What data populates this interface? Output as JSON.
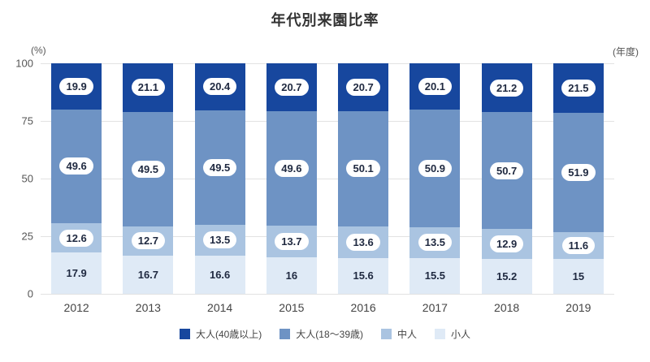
{
  "title": "年代別来園比率",
  "y_axis_unit": "(%)",
  "x_axis_unit": "(年度)",
  "y_ticks": [
    "100",
    "75",
    "50",
    "25",
    "0"
  ],
  "chart_data": {
    "type": "bar",
    "stacked": true,
    "title": "年代別来園比率",
    "xlabel": "(年度)",
    "ylabel": "(%)",
    "ylim": [
      0,
      100
    ],
    "grid": true,
    "legend_position": "bottom",
    "categories": [
      "2012",
      "2013",
      "2014",
      "2015",
      "2016",
      "2017",
      "2018",
      "2019"
    ],
    "series": [
      {
        "key": "adult-40plus",
        "name": "大人(40歳以上)",
        "color": "#17479e",
        "pill": true,
        "values": [
          19.9,
          21.1,
          20.4,
          20.7,
          20.7,
          20.1,
          21.2,
          21.5
        ],
        "labels": [
          "19.9",
          "21.1",
          "20.4",
          "20.7",
          "20.7",
          "20.1",
          "21.2",
          "21.5"
        ]
      },
      {
        "key": "adult-18-39",
        "name": "大人(18〜39歳)",
        "color": "#6e93c4",
        "pill": true,
        "values": [
          49.6,
          49.5,
          49.5,
          49.6,
          50.1,
          50.9,
          50.7,
          51.9
        ],
        "labels": [
          "49.6",
          "49.5",
          "49.5",
          "49.6",
          "50.1",
          "50.9",
          "50.7",
          "51.9"
        ]
      },
      {
        "key": "middle",
        "name": "中人",
        "color": "#aac4e1",
        "pill": true,
        "values": [
          12.6,
          12.7,
          13.5,
          13.7,
          13.6,
          13.5,
          12.9,
          11.6
        ],
        "labels": [
          "12.6",
          "12.7",
          "13.5",
          "13.7",
          "13.6",
          "13.5",
          "12.9",
          "11.6"
        ]
      },
      {
        "key": "child",
        "name": "小人",
        "color": "#dfeaf6",
        "pill": false,
        "values": [
          17.9,
          16.7,
          16.6,
          16,
          15.6,
          15.5,
          15.2,
          15
        ],
        "labels": [
          "17.9",
          "16.7",
          "16.6",
          "16",
          "15.6",
          "15.5",
          "15.2",
          "15"
        ]
      }
    ]
  }
}
